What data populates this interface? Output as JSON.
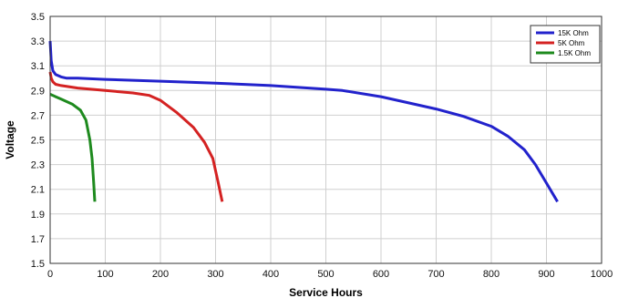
{
  "chart_data": {
    "type": "line",
    "title": "",
    "xlabel": "Service Hours",
    "ylabel": "Voltage",
    "xlim": [
      0,
      1000
    ],
    "ylim": [
      1.5,
      3.5
    ],
    "x_ticks": [
      0,
      100,
      200,
      300,
      400,
      500,
      600,
      700,
      800,
      900,
      1000
    ],
    "y_ticks": [
      "1.5",
      "1.7",
      "1.9",
      "2.1",
      "2.3",
      "2.5",
      "2.7",
      "2.9",
      "3.1",
      "3.3",
      "3.5"
    ],
    "grid": true,
    "legend_position": "top-right",
    "series": [
      {
        "name": "15K Ohm",
        "color": "#2222cc",
        "x": [
          0,
          2,
          5,
          10,
          20,
          30,
          50,
          100,
          200,
          300,
          400,
          500,
          530,
          600,
          650,
          700,
          750,
          800,
          830,
          860,
          880,
          900,
          920
        ],
        "y": [
          3.3,
          3.14,
          3.06,
          3.03,
          3.01,
          3.0,
          3.0,
          2.99,
          2.975,
          2.96,
          2.94,
          2.91,
          2.9,
          2.85,
          2.8,
          2.75,
          2.69,
          2.61,
          2.53,
          2.42,
          2.3,
          2.15,
          2.0
        ]
      },
      {
        "name": "5K Ohm",
        "color": "#d42222",
        "x": [
          0,
          2,
          5,
          10,
          20,
          50,
          100,
          150,
          180,
          200,
          230,
          260,
          280,
          295,
          305,
          312
        ],
        "y": [
          3.05,
          3.0,
          2.97,
          2.95,
          2.94,
          2.92,
          2.9,
          2.88,
          2.86,
          2.82,
          2.72,
          2.6,
          2.48,
          2.35,
          2.15,
          2.0
        ]
      },
      {
        "name": "1.5K Ohm",
        "color": "#1e8a1e",
        "x": [
          0,
          5,
          10,
          20,
          40,
          55,
          65,
          72,
          76,
          79,
          81
        ],
        "y": [
          2.87,
          2.86,
          2.85,
          2.83,
          2.79,
          2.74,
          2.66,
          2.5,
          2.35,
          2.15,
          2.0
        ]
      }
    ]
  }
}
